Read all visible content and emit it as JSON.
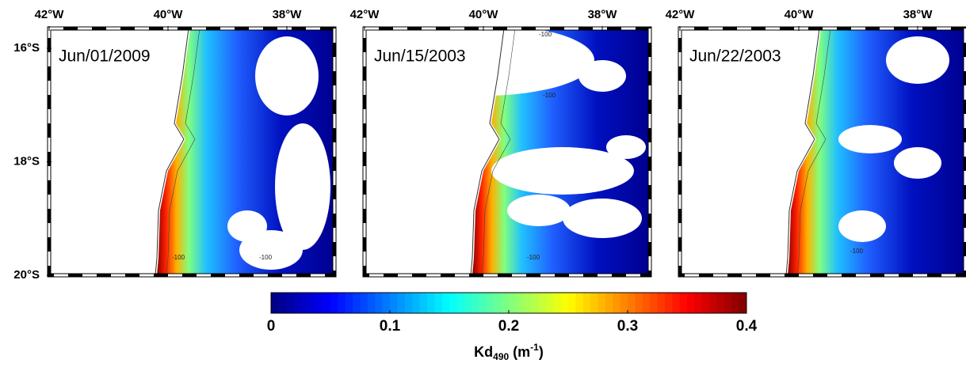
{
  "panels": [
    {
      "date": "Jun/01/2009",
      "lon_ticks": [
        {
          "value": -42,
          "label": "42°W"
        },
        {
          "value": -40,
          "label": "40°W"
        },
        {
          "value": -38,
          "label": "38°W"
        }
      ],
      "contour_labels": [
        "-100",
        "-100"
      ]
    },
    {
      "date": "Jun/15/2003",
      "lon_ticks": [
        {
          "value": -42,
          "label": "42°W"
        },
        {
          "value": -40,
          "label": "40°W"
        },
        {
          "value": -38,
          "label": "38°W"
        }
      ],
      "contour_labels": [
        "-100",
        "-100",
        "-100"
      ]
    },
    {
      "date": "Jun/22/2003",
      "lon_ticks": [
        {
          "value": -42,
          "label": "42°W"
        },
        {
          "value": -40,
          "label": "40°W"
        },
        {
          "value": -38,
          "label": "38°W"
        }
      ],
      "contour_labels": [
        "-100"
      ]
    }
  ],
  "lat_ticks": [
    {
      "value": -16,
      "label": "16°S"
    },
    {
      "value": -18,
      "label": "18°S"
    },
    {
      "value": -20,
      "label": "20°S"
    }
  ],
  "lon_range": [
    -42,
    -37.2
  ],
  "lat_range": [
    -20,
    -15.65
  ],
  "colorbar": {
    "range": [
      0,
      0.4
    ],
    "ticks": [
      0,
      0.1,
      0.2,
      0.3,
      0.4
    ],
    "label": {
      "text": "Kd",
      "subscript": "490",
      "unit_open": " (m",
      "superscript": "-1",
      "unit_close": ")"
    }
  }
}
